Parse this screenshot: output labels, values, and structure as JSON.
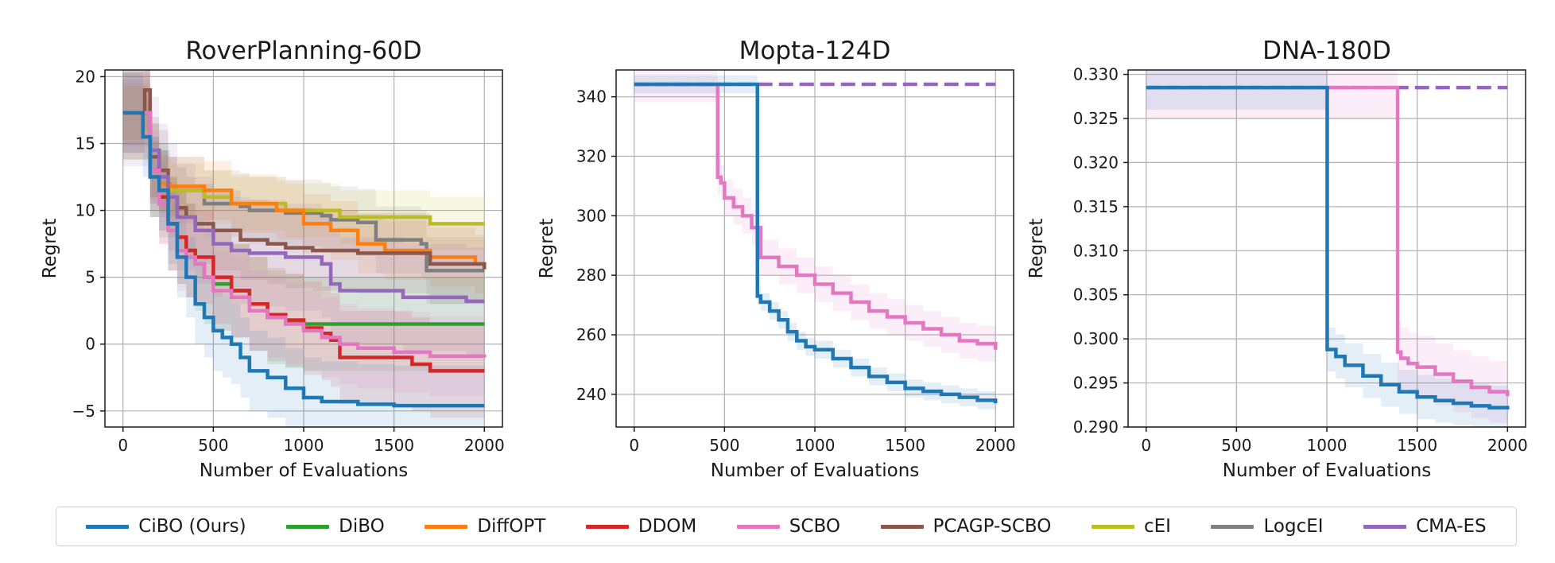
{
  "legend": [
    {
      "name": "CiBO (Ours)",
      "color": "#1f77b4"
    },
    {
      "name": "DiBO",
      "color": "#2ca02c"
    },
    {
      "name": "DiffOPT",
      "color": "#ff7f0e"
    },
    {
      "name": "DDOM",
      "color": "#d62728"
    },
    {
      "name": "SCBO",
      "color": "#e377c2"
    },
    {
      "name": "PCAGP-SCBO",
      "color": "#8c564b"
    },
    {
      "name": "cEI",
      "color": "#bcbd22"
    },
    {
      "name": "LogcEI",
      "color": "#7f7f7f"
    },
    {
      "name": "CMA-ES",
      "color": "#9467bd"
    }
  ],
  "chart_data": [
    {
      "type": "line",
      "title": "RoverPlanning-60D",
      "xlabel": "Number of Evaluations",
      "ylabel": "Regret",
      "xlim": [
        -100,
        2100
      ],
      "ylim": [
        -6.2,
        20.5
      ],
      "xticks": [
        0,
        500,
        1000,
        1500,
        2000
      ],
      "yticks": [
        -5,
        0,
        5,
        10,
        15,
        20
      ],
      "grid": true,
      "shaded_bands": true,
      "series": [
        {
          "name": "LogcEI",
          "x": [
            0,
            100,
            150,
            200,
            260,
            450,
            650,
            700,
            900,
            1100,
            1150,
            1300,
            1400,
            1650,
            1680,
            2000
          ],
          "y": [
            17.3,
            17.3,
            13.0,
            12.0,
            11.5,
            10.5,
            10.3,
            10.0,
            9.8,
            9.6,
            9.3,
            9.1,
            7.8,
            7.5,
            5.5,
            5.5
          ],
          "band": 2.5
        },
        {
          "name": "cEI",
          "x": [
            0,
            100,
            150,
            200,
            260,
            450,
            600,
            900,
            1200,
            1500,
            1700,
            2000
          ],
          "y": [
            17.3,
            17.3,
            13.0,
            12.0,
            11.5,
            11.0,
            10.5,
            10.0,
            9.5,
            9.5,
            9.0,
            9.0
          ],
          "band": 2.0
        },
        {
          "name": "DiffOPT",
          "x": [
            0,
            100,
            150,
            200,
            260,
            450,
            600,
            850,
            1000,
            1150,
            1300,
            1450,
            1700,
            1950,
            2000
          ],
          "y": [
            17.3,
            17.3,
            13.0,
            12.0,
            11.8,
            11.5,
            10.5,
            10.0,
            9.0,
            8.5,
            7.5,
            7.0,
            6.5,
            6.0,
            6.0
          ],
          "band": 2.2
        },
        {
          "name": "PCAGP-SCBO",
          "x": [
            0,
            100,
            120,
            150,
            200,
            250,
            300,
            350,
            400,
            500,
            650,
            800,
            900,
            1050,
            1300,
            1500,
            1700,
            2000
          ],
          "y": [
            17.3,
            17.3,
            19.0,
            14.0,
            13.0,
            11.0,
            10.2,
            9.5,
            9.0,
            8.5,
            7.8,
            7.5,
            7.2,
            7.0,
            6.8,
            6.8,
            6.0,
            5.6
          ],
          "band": 3.0
        },
        {
          "name": "CMA-ES",
          "x": [
            0,
            100,
            150,
            200,
            250,
            300,
            400,
            500,
            600,
            700,
            900,
            1100,
            1150,
            1200,
            1500,
            1550,
            1900,
            2000
          ],
          "y": [
            17.3,
            17.3,
            14.5,
            12.5,
            11.0,
            9.5,
            8.5,
            7.5,
            7.0,
            6.8,
            6.5,
            6.0,
            4.5,
            4.0,
            4.0,
            3.5,
            3.2,
            3.2
          ],
          "band": 4.0
        },
        {
          "name": "DiBO",
          "x": [
            0,
            100,
            150,
            200,
            250,
            300,
            350,
            400,
            450,
            500,
            600,
            700,
            800,
            900,
            1000,
            2000
          ],
          "y": [
            17.3,
            17.3,
            13.0,
            11.5,
            9.0,
            8.0,
            7.0,
            6.0,
            5.0,
            4.5,
            4.0,
            3.0,
            2.0,
            1.7,
            1.5,
            1.5
          ],
          "band": 3.5
        },
        {
          "name": "DDOM",
          "x": [
            0,
            100,
            150,
            200,
            250,
            300,
            350,
            400,
            500,
            600,
            700,
            800,
            900,
            1000,
            1100,
            1150,
            1200,
            1450,
            1600,
            1700,
            2000
          ],
          "y": [
            17.3,
            17.3,
            13.0,
            11.0,
            9.0,
            8.0,
            7.0,
            6.5,
            5.0,
            4.0,
            3.0,
            2.2,
            1.8,
            1.2,
            0.8,
            0.3,
            -1.0,
            -1.0,
            -1.5,
            -2.0,
            -2.0
          ],
          "band": 3.5
        },
        {
          "name": "SCBO",
          "x": [
            0,
            100,
            150,
            200,
            250,
            300,
            350,
            400,
            450,
            500,
            600,
            700,
            800,
            900,
            1000,
            1100,
            1200,
            1300,
            1500,
            1700,
            2000
          ],
          "y": [
            17.3,
            17.3,
            13.0,
            10.5,
            8.5,
            7.0,
            6.5,
            6.0,
            5.0,
            4.0,
            3.5,
            2.5,
            2.0,
            1.5,
            1.0,
            0.5,
            0.0,
            -0.3,
            -0.6,
            -0.9,
            -1.0
          ],
          "band": 3.0
        },
        {
          "name": "CiBO (Ours)",
          "x": [
            0,
            100,
            110,
            150,
            200,
            250,
            300,
            350,
            400,
            450,
            500,
            550,
            600,
            650,
            700,
            800,
            900,
            1000,
            1100,
            1300,
            1500,
            2000
          ],
          "y": [
            17.3,
            17.3,
            15.5,
            12.5,
            11.5,
            9.0,
            6.5,
            5.0,
            3.0,
            2.0,
            1.0,
            0.5,
            0.0,
            -1.0,
            -2.0,
            -2.5,
            -3.3,
            -4.0,
            -4.3,
            -4.5,
            -4.6,
            -4.6
          ],
          "band": 3.0
        }
      ]
    },
    {
      "type": "line",
      "title": "Mopta-124D",
      "xlabel": "Number of Evaluations",
      "ylabel": "Regret",
      "xlim": [
        -100,
        2100
      ],
      "ylim": [
        229,
        349
      ],
      "xticks": [
        0,
        500,
        1000,
        1500,
        2000
      ],
      "yticks": [
        240,
        260,
        280,
        300,
        320,
        340
      ],
      "grid": true,
      "shaded_bands": true,
      "series": [
        {
          "name": "CMA-ES",
          "dashed": true,
          "x": [
            0,
            2000
          ],
          "y": [
            344.2,
            344.2
          ],
          "band": 0
        },
        {
          "name": "SCBO",
          "x": [
            0,
            460,
            462,
            480,
            500,
            550,
            600,
            650,
            700,
            800,
            900,
            1000,
            1100,
            1200,
            1300,
            1400,
            1500,
            1600,
            1700,
            1800,
            1900,
            2000
          ],
          "y": [
            344.2,
            344.2,
            313.0,
            311.0,
            306.0,
            303.0,
            300.0,
            296.0,
            286.0,
            283.0,
            280.0,
            277.0,
            274.0,
            271.0,
            268.0,
            266.0,
            264.0,
            262.0,
            260.0,
            258.0,
            257.0,
            255.0
          ],
          "band": 6.0
        },
        {
          "name": "CiBO (Ours)",
          "x": [
            0,
            680,
            682,
            700,
            750,
            800,
            850,
            900,
            950,
            1000,
            1100,
            1200,
            1300,
            1400,
            1500,
            1600,
            1700,
            1800,
            1900,
            2000
          ],
          "y": [
            344.2,
            344.2,
            273.0,
            271.0,
            268.0,
            265.0,
            261.0,
            258.0,
            256.0,
            255.0,
            252.0,
            249.0,
            246.0,
            244.0,
            242.0,
            241.0,
            240.0,
            239.0,
            238.0,
            237.0
          ],
          "band": 3.0
        }
      ]
    },
    {
      "type": "line",
      "title": "DNA-180D",
      "xlabel": "Number of Evaluations",
      "ylabel": "Regret",
      "xlim": [
        -100,
        2100
      ],
      "ylim": [
        0.29,
        0.3305
      ],
      "xticks": [
        0,
        500,
        1000,
        1500,
        2000
      ],
      "yticks": [
        0.29,
        0.295,
        0.3,
        0.305,
        0.31,
        0.315,
        0.32,
        0.325,
        0.33
      ],
      "grid": true,
      "shaded_bands": true,
      "series": [
        {
          "name": "CMA-ES",
          "dashed": true,
          "x": [
            0,
            2000
          ],
          "y": [
            0.3285,
            0.3285
          ],
          "band": 0
        },
        {
          "name": "SCBO",
          "x": [
            0,
            1390,
            1392,
            1410,
            1450,
            1500,
            1600,
            1700,
            1800,
            1900,
            2000
          ],
          "y": [
            0.3285,
            0.3285,
            0.2985,
            0.2978,
            0.2972,
            0.2968,
            0.296,
            0.2952,
            0.2945,
            0.294,
            0.2935
          ],
          "band": 0.0035
        },
        {
          "name": "CiBO (Ours)",
          "x": [
            0,
            1000,
            1002,
            1050,
            1100,
            1200,
            1300,
            1400,
            1500,
            1600,
            1700,
            1800,
            1900,
            2000
          ],
          "y": [
            0.3285,
            0.3285,
            0.2988,
            0.298,
            0.297,
            0.2958,
            0.2948,
            0.294,
            0.2934,
            0.293,
            0.2927,
            0.2924,
            0.2922,
            0.292
          ],
          "band": 0.0025
        }
      ]
    }
  ]
}
